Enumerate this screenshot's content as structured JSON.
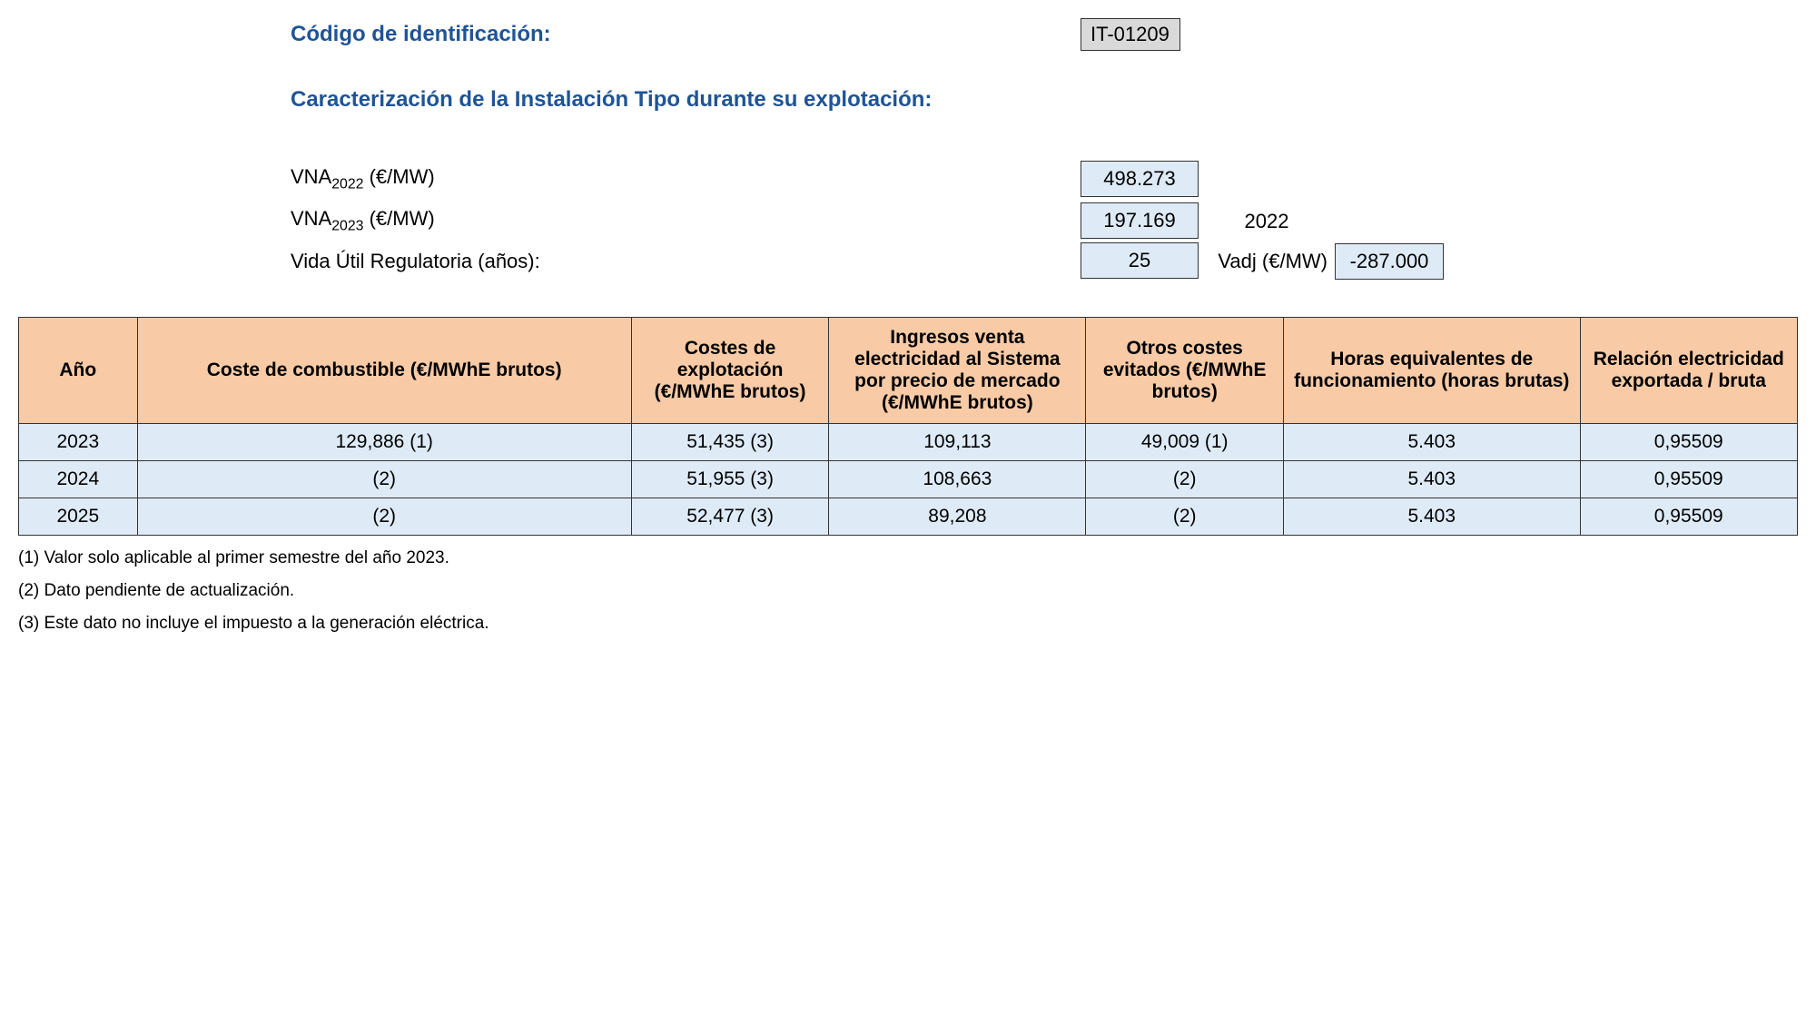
{
  "header": {
    "codeLabel": "Código de identificación:",
    "codeValue": "IT-01209",
    "characterization": "Caracterización de la Instalación Tipo durante su explotación:"
  },
  "params": {
    "vna2022Label": "VNA",
    "vna2022Sub": "2022",
    "vna2022Unit": " (€/MW)",
    "vna2022Value": "498.273",
    "vna2023Label": "VNA",
    "vna2023Sub": "2023",
    "vna2023Unit": " (€/MW)",
    "vna2023Value": "197.169",
    "yearRight": "2022",
    "vidaLabel": "Vida Útil Regulatoria (años):",
    "vidaValue": "25",
    "vadjLabel": "Vadj (€/MW)",
    "vadjValue": "-287.000"
  },
  "table": {
    "headers": {
      "ano": "Año",
      "combustible": "Coste de combustible (€/MWhE brutos)",
      "explotacion": "Costes de explotación (€/MWhE brutos)",
      "ingresos": "Ingresos venta electricidad al Sistema por precio de mercado (€/MWhE brutos)",
      "otros": "Otros costes evitados (€/MWhE brutos)",
      "horas": "Horas equivalentes de funcionamiento (horas brutas)",
      "relacion": "Relación electricidad exportada / bruta"
    },
    "rows": [
      {
        "ano": "2023",
        "combustible": "129,886 (1)",
        "explotacion": "51,435 (3)",
        "ingresos": "109,113",
        "otros": "49,009 (1)",
        "horas": "5.403",
        "relacion": "0,95509"
      },
      {
        "ano": "2024",
        "combustible": "(2)",
        "explotacion": "51,955 (3)",
        "ingresos": "108,663",
        "otros": "(2)",
        "horas": "5.403",
        "relacion": "0,95509"
      },
      {
        "ano": "2025",
        "combustible": "(2)",
        "explotacion": "52,477 (3)",
        "ingresos": "89,208",
        "otros": "(2)",
        "horas": "5.403",
        "relacion": "0,95509"
      }
    ]
  },
  "footnotes": {
    "n1": "(1) Valor solo aplicable al primer semestre del año 2023.",
    "n2": "(2) Dato pendiente de actualización.",
    "n3": "(3) Este dato no incluye el impuesto a la generación eléctrica."
  },
  "style": {
    "headingColor": "#1f5496",
    "tableHeaderBg": "#f8cba6",
    "tableCellBg": "#deebf7",
    "codeBoxBg": "#d9d9d9",
    "borderColor": "#333333",
    "bodyFontSize": 20
  }
}
